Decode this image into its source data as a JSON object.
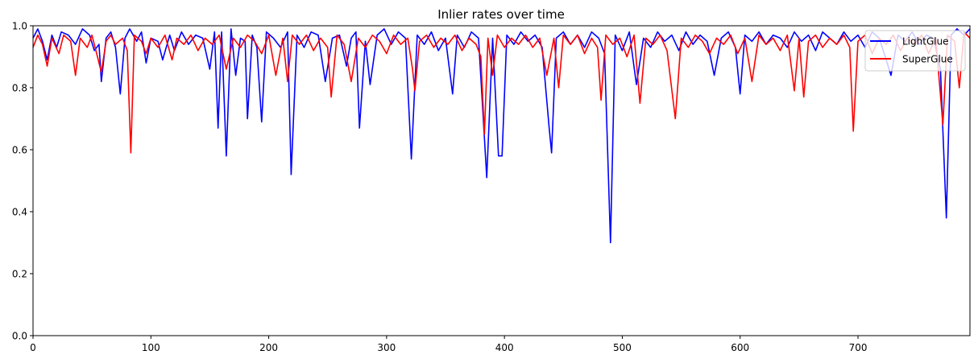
{
  "chart_data": {
    "type": "line",
    "title": "Inlier rates over time",
    "xlabel": "",
    "ylabel": "",
    "xlim": [
      0,
      795
    ],
    "ylim": [
      0.0,
      1.0
    ],
    "xticks": [
      "0",
      "100",
      "200",
      "300",
      "400",
      "500",
      "600",
      "700"
    ],
    "yticks": [
      "0.0",
      "0.2",
      "0.4",
      "0.6",
      "0.8",
      "1.0"
    ],
    "grid": false,
    "legend_position": "top-right",
    "series": [
      {
        "name": "LightGlue",
        "color": "#0000ff",
        "points": [
          [
            0,
            0.96
          ],
          [
            4,
            0.99
          ],
          [
            8,
            0.95
          ],
          [
            12,
            0.89
          ],
          [
            16,
            0.97
          ],
          [
            20,
            0.93
          ],
          [
            24,
            0.98
          ],
          [
            30,
            0.97
          ],
          [
            36,
            0.94
          ],
          [
            42,
            0.99
          ],
          [
            48,
            0.97
          ],
          [
            52,
            0.92
          ],
          [
            56,
            0.94
          ],
          [
            58,
            0.82
          ],
          [
            62,
            0.96
          ],
          [
            66,
            0.98
          ],
          [
            70,
            0.93
          ],
          [
            74,
            0.78
          ],
          [
            78,
            0.96
          ],
          [
            82,
            0.99
          ],
          [
            88,
            0.95
          ],
          [
            92,
            0.98
          ],
          [
            96,
            0.88
          ],
          [
            100,
            0.96
          ],
          [
            106,
            0.95
          ],
          [
            110,
            0.89
          ],
          [
            116,
            0.97
          ],
          [
            120,
            0.92
          ],
          [
            126,
            0.98
          ],
          [
            132,
            0.94
          ],
          [
            138,
            0.97
          ],
          [
            144,
            0.96
          ],
          [
            150,
            0.86
          ],
          [
            154,
            0.98
          ],
          [
            157,
            0.67
          ],
          [
            160,
            0.98
          ],
          [
            164,
            0.58
          ],
          [
            168,
            0.99
          ],
          [
            172,
            0.84
          ],
          [
            176,
            0.96
          ],
          [
            180,
            0.95
          ],
          [
            182,
            0.7
          ],
          [
            186,
            0.97
          ],
          [
            190,
            0.93
          ],
          [
            194,
            0.69
          ],
          [
            198,
            0.98
          ],
          [
            204,
            0.96
          ],
          [
            210,
            0.93
          ],
          [
            216,
            0.98
          ],
          [
            219,
            0.52
          ],
          [
            224,
            0.97
          ],
          [
            230,
            0.93
          ],
          [
            236,
            0.98
          ],
          [
            242,
            0.97
          ],
          [
            248,
            0.82
          ],
          [
            254,
            0.96
          ],
          [
            260,
            0.97
          ],
          [
            266,
            0.87
          ],
          [
            270,
            0.96
          ],
          [
            274,
            0.98
          ],
          [
            277,
            0.67
          ],
          [
            282,
            0.95
          ],
          [
            286,
            0.81
          ],
          [
            292,
            0.97
          ],
          [
            298,
            0.99
          ],
          [
            304,
            0.94
          ],
          [
            310,
            0.98
          ],
          [
            316,
            0.96
          ],
          [
            321,
            0.57
          ],
          [
            326,
            0.97
          ],
          [
            332,
            0.94
          ],
          [
            338,
            0.98
          ],
          [
            344,
            0.92
          ],
          [
            350,
            0.96
          ],
          [
            356,
            0.78
          ],
          [
            360,
            0.97
          ],
          [
            366,
            0.93
          ],
          [
            372,
            0.98
          ],
          [
            378,
            0.96
          ],
          [
            385,
            0.51
          ],
          [
            390,
            0.96
          ],
          [
            395,
            0.58
          ],
          [
            398,
            0.58
          ],
          [
            402,
            0.97
          ],
          [
            408,
            0.94
          ],
          [
            414,
            0.98
          ],
          [
            420,
            0.95
          ],
          [
            426,
            0.97
          ],
          [
            432,
            0.93
          ],
          [
            438,
            0.67
          ],
          [
            440,
            0.59
          ],
          [
            444,
            0.96
          ],
          [
            450,
            0.98
          ],
          [
            456,
            0.94
          ],
          [
            462,
            0.97
          ],
          [
            468,
            0.93
          ],
          [
            474,
            0.98
          ],
          [
            480,
            0.96
          ],
          [
            485,
            0.91
          ],
          [
            490,
            0.3
          ],
          [
            494,
            0.97
          ],
          [
            500,
            0.92
          ],
          [
            506,
            0.98
          ],
          [
            512,
            0.81
          ],
          [
            518,
            0.96
          ],
          [
            524,
            0.93
          ],
          [
            530,
            0.98
          ],
          [
            536,
            0.95
          ],
          [
            542,
            0.97
          ],
          [
            548,
            0.92
          ],
          [
            554,
            0.98
          ],
          [
            560,
            0.94
          ],
          [
            566,
            0.97
          ],
          [
            572,
            0.95
          ],
          [
            578,
            0.84
          ],
          [
            584,
            0.96
          ],
          [
            590,
            0.98
          ],
          [
            596,
            0.93
          ],
          [
            600,
            0.78
          ],
          [
            604,
            0.97
          ],
          [
            610,
            0.95
          ],
          [
            616,
            0.98
          ],
          [
            622,
            0.94
          ],
          [
            628,
            0.97
          ],
          [
            634,
            0.96
          ],
          [
            640,
            0.93
          ],
          [
            646,
            0.98
          ],
          [
            652,
            0.95
          ],
          [
            658,
            0.97
          ],
          [
            664,
            0.92
          ],
          [
            670,
            0.98
          ],
          [
            676,
            0.96
          ],
          [
            682,
            0.94
          ],
          [
            688,
            0.98
          ],
          [
            694,
            0.95
          ],
          [
            700,
            0.97
          ],
          [
            706,
            0.93
          ],
          [
            712,
            0.98
          ],
          [
            718,
            0.96
          ],
          [
            724,
            0.89
          ],
          [
            728,
            0.84
          ],
          [
            734,
            0.97
          ],
          [
            740,
            0.95
          ],
          [
            746,
            0.98
          ],
          [
            752,
            0.94
          ],
          [
            758,
            0.97
          ],
          [
            764,
            0.96
          ],
          [
            770,
            0.86
          ],
          [
            775,
            0.38
          ],
          [
            779,
            0.97
          ],
          [
            784,
            0.99
          ],
          [
            790,
            0.97
          ],
          [
            795,
            0.99
          ]
        ]
      },
      {
        "name": "SuperGlue",
        "color": "#ff0000",
        "points": [
          [
            0,
            0.93
          ],
          [
            4,
            0.97
          ],
          [
            8,
            0.94
          ],
          [
            12,
            0.87
          ],
          [
            16,
            0.96
          ],
          [
            22,
            0.91
          ],
          [
            26,
            0.97
          ],
          [
            32,
            0.95
          ],
          [
            36,
            0.84
          ],
          [
            40,
            0.96
          ],
          [
            46,
            0.93
          ],
          [
            50,
            0.97
          ],
          [
            54,
            0.91
          ],
          [
            58,
            0.85
          ],
          [
            62,
            0.95
          ],
          [
            66,
            0.97
          ],
          [
            70,
            0.94
          ],
          [
            76,
            0.96
          ],
          [
            80,
            0.92
          ],
          [
            83,
            0.59
          ],
          [
            86,
            0.97
          ],
          [
            92,
            0.95
          ],
          [
            96,
            0.91
          ],
          [
            100,
            0.96
          ],
          [
            106,
            0.93
          ],
          [
            112,
            0.97
          ],
          [
            118,
            0.89
          ],
          [
            122,
            0.96
          ],
          [
            128,
            0.94
          ],
          [
            134,
            0.97
          ],
          [
            140,
            0.92
          ],
          [
            146,
            0.96
          ],
          [
            152,
            0.94
          ],
          [
            158,
            0.97
          ],
          [
            164,
            0.86
          ],
          [
            170,
            0.96
          ],
          [
            176,
            0.93
          ],
          [
            182,
            0.97
          ],
          [
            188,
            0.95
          ],
          [
            194,
            0.91
          ],
          [
            200,
            0.97
          ],
          [
            206,
            0.84
          ],
          [
            212,
            0.96
          ],
          [
            216,
            0.82
          ],
          [
            220,
            0.97
          ],
          [
            226,
            0.94
          ],
          [
            232,
            0.97
          ],
          [
            238,
            0.92
          ],
          [
            244,
            0.96
          ],
          [
            250,
            0.93
          ],
          [
            253,
            0.77
          ],
          [
            258,
            0.97
          ],
          [
            264,
            0.94
          ],
          [
            270,
            0.82
          ],
          [
            276,
            0.96
          ],
          [
            282,
            0.93
          ],
          [
            288,
            0.97
          ],
          [
            294,
            0.95
          ],
          [
            300,
            0.91
          ],
          [
            306,
            0.97
          ],
          [
            312,
            0.94
          ],
          [
            318,
            0.96
          ],
          [
            322,
            0.86
          ],
          [
            324,
            0.79
          ],
          [
            328,
            0.95
          ],
          [
            334,
            0.97
          ],
          [
            340,
            0.93
          ],
          [
            346,
            0.96
          ],
          [
            352,
            0.94
          ],
          [
            358,
            0.97
          ],
          [
            364,
            0.92
          ],
          [
            370,
            0.96
          ],
          [
            376,
            0.94
          ],
          [
            380,
            0.9
          ],
          [
            383,
            0.65
          ],
          [
            386,
            0.96
          ],
          [
            390,
            0.84
          ],
          [
            394,
            0.97
          ],
          [
            400,
            0.93
          ],
          [
            406,
            0.96
          ],
          [
            412,
            0.94
          ],
          [
            418,
            0.97
          ],
          [
            424,
            0.93
          ],
          [
            430,
            0.96
          ],
          [
            436,
            0.84
          ],
          [
            442,
            0.96
          ],
          [
            446,
            0.8
          ],
          [
            450,
            0.97
          ],
          [
            456,
            0.94
          ],
          [
            462,
            0.97
          ],
          [
            468,
            0.91
          ],
          [
            474,
            0.96
          ],
          [
            479,
            0.93
          ],
          [
            482,
            0.76
          ],
          [
            486,
            0.97
          ],
          [
            492,
            0.94
          ],
          [
            498,
            0.96
          ],
          [
            504,
            0.9
          ],
          [
            510,
            0.97
          ],
          [
            515,
            0.75
          ],
          [
            520,
            0.96
          ],
          [
            526,
            0.94
          ],
          [
            532,
            0.97
          ],
          [
            538,
            0.92
          ],
          [
            545,
            0.7
          ],
          [
            550,
            0.96
          ],
          [
            556,
            0.93
          ],
          [
            562,
            0.97
          ],
          [
            568,
            0.95
          ],
          [
            574,
            0.91
          ],
          [
            580,
            0.96
          ],
          [
            586,
            0.94
          ],
          [
            592,
            0.97
          ],
          [
            598,
            0.91
          ],
          [
            604,
            0.96
          ],
          [
            610,
            0.82
          ],
          [
            616,
            0.97
          ],
          [
            622,
            0.94
          ],
          [
            628,
            0.96
          ],
          [
            634,
            0.92
          ],
          [
            640,
            0.97
          ],
          [
            646,
            0.79
          ],
          [
            650,
            0.96
          ],
          [
            654,
            0.77
          ],
          [
            658,
            0.95
          ],
          [
            664,
            0.97
          ],
          [
            670,
            0.93
          ],
          [
            676,
            0.96
          ],
          [
            682,
            0.94
          ],
          [
            688,
            0.97
          ],
          [
            693,
            0.93
          ],
          [
            696,
            0.66
          ],
          [
            700,
            0.95
          ],
          [
            706,
            0.97
          ],
          [
            712,
            0.91
          ],
          [
            718,
            0.96
          ],
          [
            724,
            0.94
          ],
          [
            730,
            0.97
          ],
          [
            736,
            0.92
          ],
          [
            742,
            0.96
          ],
          [
            748,
            0.94
          ],
          [
            754,
            0.97
          ],
          [
            760,
            0.91
          ],
          [
            766,
            0.96
          ],
          [
            772,
            0.68
          ],
          [
            776,
            0.97
          ],
          [
            782,
            0.95
          ],
          [
            786,
            0.8
          ],
          [
            790,
            0.98
          ],
          [
            795,
            0.96
          ]
        ]
      }
    ]
  }
}
